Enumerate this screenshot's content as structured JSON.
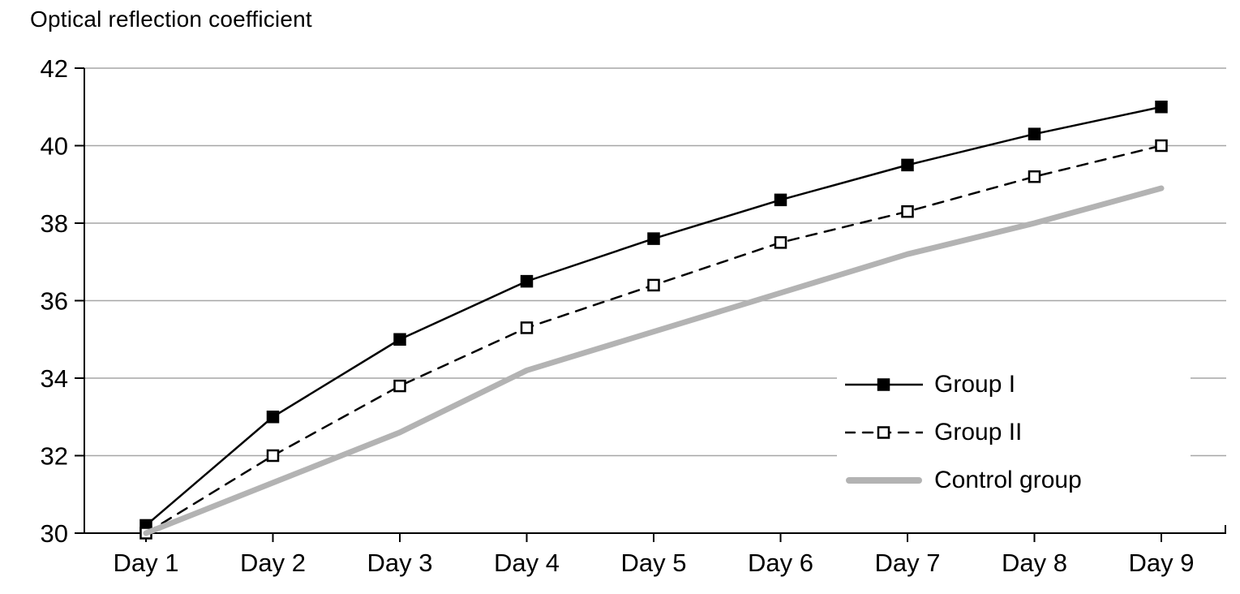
{
  "title": "Optical reflection coefficient",
  "chart_data": {
    "type": "line",
    "title": "Optical reflection coefficient",
    "xlabel": "",
    "ylabel": "Optical reflection coefficient",
    "categories": [
      "Day 1",
      "Day 2",
      "Day 3",
      "Day 4",
      "Day 5",
      "Day 6",
      "Day 7",
      "Day 8",
      "Day 9"
    ],
    "yticks": [
      "30",
      "32",
      "34",
      "36",
      "38",
      "40",
      "42"
    ],
    "ylim": [
      30,
      42
    ],
    "grid": "horizontal",
    "legend_position": "inside-right-middle",
    "series": [
      {
        "name": "Group I",
        "values": [
          30.2,
          33.0,
          35.0,
          36.5,
          37.6,
          38.6,
          39.5,
          40.3,
          41.0
        ],
        "color": "#000000",
        "line": "solid",
        "marker": "filled-square"
      },
      {
        "name": "Group II",
        "values": [
          30.0,
          32.0,
          33.8,
          35.3,
          36.4,
          37.5,
          38.3,
          39.2,
          40.0
        ],
        "color": "#000000",
        "line": "dashed",
        "marker": "open-square"
      },
      {
        "name": "Control group",
        "values": [
          30.0,
          31.3,
          32.6,
          34.2,
          35.2,
          36.2,
          37.2,
          38.0,
          38.9
        ],
        "color": "#b3b3b3",
        "line": "solid-thick",
        "marker": "none"
      }
    ],
    "colors": {
      "grid": "#a6a6a6",
      "axis": "#000000",
      "background": "#ffffff"
    }
  }
}
